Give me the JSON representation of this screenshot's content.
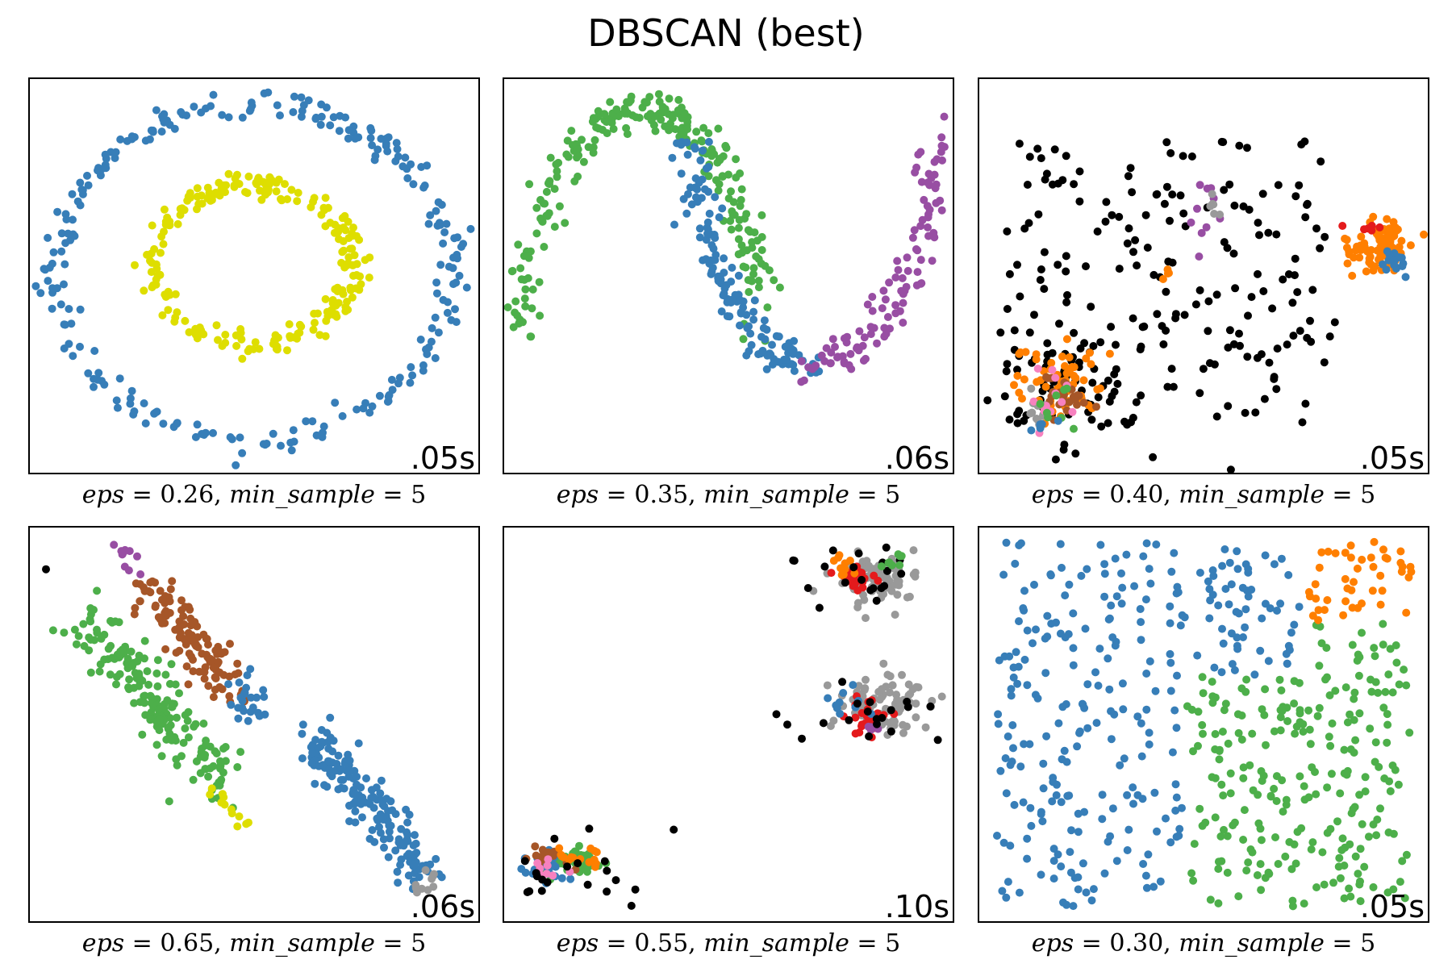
{
  "figure": {
    "title": "DBSCAN (best)"
  },
  "colors": {
    "blue": "#377eb8",
    "yellow": "#dede00",
    "green": "#4daf4a",
    "purple": "#984ea3",
    "black": "#000000",
    "orange": "#ff7f00",
    "red": "#e41a1c",
    "gray": "#999999",
    "pink": "#f781bf",
    "brown": "#a65628"
  },
  "chart_data": [
    {
      "type": "scatter",
      "time": ".05s",
      "eps": "0.26",
      "min_sample": "5",
      "xlim": [
        0,
        1
      ],
      "ylim": [
        0,
        1
      ],
      "clusters": [
        {
          "color": "blue",
          "shape": "ring",
          "cx": 0.5,
          "cy": 0.51,
          "rx": 0.44,
          "ry": 0.42,
          "spread": 0.02,
          "n": 260,
          "seed": 11
        },
        {
          "color": "yellow",
          "shape": "ring",
          "cx": 0.5,
          "cy": 0.53,
          "rx": 0.22,
          "ry": 0.2,
          "spread": 0.018,
          "n": 230,
          "seed": 12
        }
      ]
    },
    {
      "type": "scatter",
      "time": ".06s",
      "eps": "0.35",
      "min_sample": "5",
      "xlim": [
        0,
        1
      ],
      "ylim": [
        0,
        1
      ],
      "clusters": [
        {
          "color": "green",
          "shape": "arc",
          "cx": 0.31,
          "cy": 0.35,
          "rx": 0.26,
          "ry": 0.57,
          "a0": 0.0,
          "a1": 3.14,
          "spread": 0.022,
          "n": 240,
          "seed": 21
        },
        {
          "color": "blue",
          "shape": "arc",
          "cx": 0.69,
          "cy": 0.85,
          "rx": 0.26,
          "ry": 0.57,
          "a0": 3.14,
          "a1": 4.7,
          "spread": 0.022,
          "n": 140,
          "seed": 22
        },
        {
          "color": "purple",
          "shape": "arc",
          "cx": 0.69,
          "cy": 0.85,
          "rx": 0.26,
          "ry": 0.57,
          "a0": 4.7,
          "a1": 6.28,
          "spread": 0.022,
          "n": 110,
          "seed": 23
        }
      ]
    },
    {
      "type": "scatter",
      "time": ".05s",
      "eps": "0.40",
      "min_sample": "5",
      "xlim": [
        0,
        1
      ],
      "ylim": [
        0,
        1
      ],
      "clusters": [
        {
          "color": "black",
          "shape": "uniform",
          "x0": 0.06,
          "x1": 0.8,
          "y0": 0.12,
          "y1": 0.85,
          "n": 200,
          "seed": 31
        },
        {
          "color": "black",
          "shape": "blob",
          "cx": 0.19,
          "cy": 0.22,
          "sx": 0.1,
          "sy": 0.09,
          "n": 50,
          "seed": 32
        },
        {
          "color": "orange",
          "shape": "blob",
          "cx": 0.89,
          "cy": 0.57,
          "sx": 0.035,
          "sy": 0.03,
          "n": 90,
          "seed": 33
        },
        {
          "color": "blue",
          "shape": "blob",
          "cx": 0.92,
          "cy": 0.54,
          "sx": 0.015,
          "sy": 0.015,
          "n": 20,
          "seed": 34
        },
        {
          "color": "red",
          "shape": "blob",
          "cx": 0.87,
          "cy": 0.62,
          "sx": 0.02,
          "sy": 0.01,
          "n": 6,
          "seed": 35
        },
        {
          "color": "orange",
          "shape": "blob",
          "cx": 0.19,
          "cy": 0.22,
          "sx": 0.05,
          "sy": 0.05,
          "n": 60,
          "seed": 36
        },
        {
          "color": "brown",
          "shape": "blob",
          "cx": 0.19,
          "cy": 0.2,
          "sx": 0.025,
          "sy": 0.025,
          "n": 30,
          "seed": 37
        },
        {
          "color": "gray",
          "shape": "blob",
          "cx": 0.14,
          "cy": 0.16,
          "sx": 0.02,
          "sy": 0.02,
          "n": 12,
          "seed": 38
        },
        {
          "color": "pink",
          "shape": "blob",
          "cx": 0.17,
          "cy": 0.2,
          "sx": 0.04,
          "sy": 0.04,
          "n": 12,
          "seed": 39
        },
        {
          "color": "green",
          "shape": "blob",
          "cx": 0.17,
          "cy": 0.18,
          "sx": 0.04,
          "sy": 0.04,
          "n": 8,
          "seed": 40
        },
        {
          "color": "blue",
          "shape": "blob",
          "cx": 0.15,
          "cy": 0.13,
          "sx": 0.02,
          "sy": 0.015,
          "n": 6,
          "seed": 41
        },
        {
          "color": "purple",
          "shape": "blob",
          "cx": 0.5,
          "cy": 0.68,
          "sx": 0.015,
          "sy": 0.04,
          "n": 10,
          "seed": 42
        },
        {
          "color": "gray",
          "shape": "blob",
          "cx": 0.52,
          "cy": 0.66,
          "sx": 0.01,
          "sy": 0.02,
          "n": 6,
          "seed": 43
        },
        {
          "color": "orange",
          "shape": "blob",
          "cx": 0.42,
          "cy": 0.5,
          "sx": 0.01,
          "sy": 0.01,
          "n": 4,
          "seed": 44
        }
      ]
    },
    {
      "type": "scatter",
      "time": ".06s",
      "eps": "0.65",
      "min_sample": "5",
      "xlim": [
        0,
        1
      ],
      "ylim": [
        0,
        1
      ],
      "clusters": [
        {
          "color": "green",
          "shape": "line",
          "x0": 0.12,
          "y0": 0.77,
          "x1": 0.43,
          "y1": 0.35,
          "spread": 0.03,
          "n": 180,
          "seed": 51
        },
        {
          "color": "brown",
          "shape": "line",
          "x0": 0.27,
          "y0": 0.85,
          "x1": 0.46,
          "y1": 0.58,
          "spread": 0.025,
          "n": 120,
          "seed": 52
        },
        {
          "color": "blue",
          "shape": "line",
          "x0": 0.62,
          "y0": 0.47,
          "x1": 0.89,
          "y1": 0.12,
          "spread": 0.025,
          "n": 170,
          "seed": 53
        },
        {
          "color": "blue",
          "shape": "blob",
          "cx": 0.49,
          "cy": 0.56,
          "sx": 0.03,
          "sy": 0.03,
          "n": 25,
          "seed": 54
        },
        {
          "color": "purple",
          "shape": "line",
          "x0": 0.18,
          "y0": 0.96,
          "x1": 0.25,
          "y1": 0.88,
          "spread": 0.01,
          "n": 10,
          "seed": 55
        },
        {
          "color": "yellow",
          "shape": "line",
          "x0": 0.42,
          "y0": 0.33,
          "x1": 0.48,
          "y1": 0.25,
          "spread": 0.01,
          "n": 12,
          "seed": 56
        },
        {
          "color": "gray",
          "shape": "blob",
          "cx": 0.88,
          "cy": 0.11,
          "sx": 0.02,
          "sy": 0.02,
          "n": 10,
          "seed": 57
        },
        {
          "color": "black",
          "shape": "blob",
          "cx": 0.04,
          "cy": 0.89,
          "sx": 0.001,
          "sy": 0.001,
          "n": 1,
          "seed": 58
        }
      ]
    },
    {
      "type": "scatter",
      "time": ".10s",
      "eps": "0.55",
      "min_sample": "5",
      "xlim": [
        0,
        1
      ],
      "ylim": [
        0,
        1
      ],
      "clusters": [
        {
          "color": "gray",
          "shape": "blob",
          "cx": 0.82,
          "cy": 0.87,
          "sx": 0.05,
          "sy": 0.03,
          "n": 90,
          "seed": 61
        },
        {
          "color": "red",
          "shape": "blob",
          "cx": 0.78,
          "cy": 0.87,
          "sx": 0.025,
          "sy": 0.02,
          "n": 25,
          "seed": 62
        },
        {
          "color": "orange",
          "shape": "blob",
          "cx": 0.74,
          "cy": 0.89,
          "sx": 0.02,
          "sy": 0.015,
          "n": 10,
          "seed": 63
        },
        {
          "color": "black",
          "shape": "blob",
          "cx": 0.8,
          "cy": 0.87,
          "sx": 0.08,
          "sy": 0.04,
          "n": 20,
          "seed": 64
        },
        {
          "color": "green",
          "shape": "blob",
          "cx": 0.87,
          "cy": 0.9,
          "sx": 0.02,
          "sy": 0.015,
          "n": 8,
          "seed": 65
        },
        {
          "color": "gray",
          "shape": "blob",
          "cx": 0.85,
          "cy": 0.55,
          "sx": 0.05,
          "sy": 0.03,
          "n": 90,
          "seed": 66
        },
        {
          "color": "red",
          "shape": "blob",
          "cx": 0.8,
          "cy": 0.52,
          "sx": 0.025,
          "sy": 0.02,
          "n": 25,
          "seed": 67
        },
        {
          "color": "blue",
          "shape": "blob",
          "cx": 0.76,
          "cy": 0.54,
          "sx": 0.02,
          "sy": 0.02,
          "n": 10,
          "seed": 68
        },
        {
          "color": "purple",
          "shape": "blob",
          "cx": 0.82,
          "cy": 0.49,
          "sx": 0.02,
          "sy": 0.01,
          "n": 6,
          "seed": 69
        },
        {
          "color": "black",
          "shape": "blob",
          "cx": 0.82,
          "cy": 0.53,
          "sx": 0.08,
          "sy": 0.04,
          "n": 18,
          "seed": 70
        },
        {
          "color": "black",
          "shape": "blob",
          "cx": 0.63,
          "cy": 0.5,
          "sx": 0.001,
          "sy": 0.001,
          "n": 1,
          "seed": 71
        },
        {
          "color": "green",
          "shape": "blob",
          "cx": 0.15,
          "cy": 0.15,
          "sx": 0.04,
          "sy": 0.02,
          "n": 45,
          "seed": 72
        },
        {
          "color": "blue",
          "shape": "blob",
          "cx": 0.1,
          "cy": 0.14,
          "sx": 0.03,
          "sy": 0.02,
          "n": 25,
          "seed": 73
        },
        {
          "color": "brown",
          "shape": "blob",
          "cx": 0.1,
          "cy": 0.16,
          "sx": 0.03,
          "sy": 0.015,
          "n": 15,
          "seed": 74
        },
        {
          "color": "orange",
          "shape": "blob",
          "cx": 0.16,
          "cy": 0.17,
          "sx": 0.03,
          "sy": 0.015,
          "n": 15,
          "seed": 75
        },
        {
          "color": "pink",
          "shape": "blob",
          "cx": 0.11,
          "cy": 0.14,
          "sx": 0.04,
          "sy": 0.02,
          "n": 8,
          "seed": 76
        },
        {
          "color": "black",
          "shape": "blob",
          "cx": 0.15,
          "cy": 0.15,
          "sx": 0.08,
          "sy": 0.05,
          "n": 20,
          "seed": 77
        }
      ]
    },
    {
      "type": "scatter",
      "time": ".05s",
      "eps": "0.30",
      "min_sample": "5",
      "xlim": [
        0,
        1
      ],
      "ylim": [
        0,
        1
      ],
      "clusters": [
        {
          "color": "blue",
          "shape": "uniform",
          "x0": 0.04,
          "x1": 0.46,
          "y0": 0.04,
          "y1": 0.96,
          "n": 220,
          "seed": 81
        },
        {
          "color": "blue",
          "shape": "uniform",
          "x0": 0.46,
          "x1": 0.72,
          "y0": 0.62,
          "y1": 0.96,
          "n": 60,
          "seed": 82
        },
        {
          "color": "green",
          "shape": "uniform",
          "x0": 0.46,
          "x1": 0.96,
          "y0": 0.04,
          "y1": 0.62,
          "n": 230,
          "seed": 83
        },
        {
          "color": "green",
          "shape": "uniform",
          "x0": 0.72,
          "x1": 0.96,
          "y0": 0.62,
          "y1": 0.76,
          "n": 20,
          "seed": 84
        },
        {
          "color": "orange",
          "shape": "uniform",
          "x0": 0.72,
          "x1": 0.96,
          "y0": 0.76,
          "y1": 0.96,
          "n": 45,
          "seed": 85
        }
      ]
    }
  ]
}
